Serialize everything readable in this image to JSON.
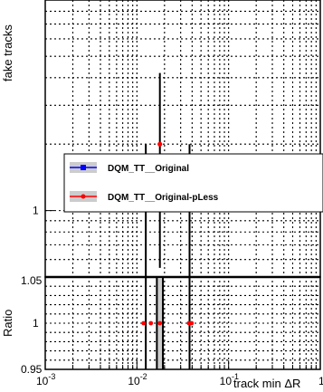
{
  "chart_data": [
    {
      "type": "line",
      "panel": "main",
      "title": "",
      "xlabel": "track min ΔR",
      "ylabel": "fake tracks",
      "x_scale": "log",
      "y_scale": "log",
      "xlim": [
        0.001,
        1
      ],
      "ylim": [
        0.5,
        9
      ],
      "x_tick_labels": [
        "10^-3",
        "10^-2",
        "10^-1",
        "1"
      ],
      "y_tick_labels": [
        "1"
      ],
      "grid": true,
      "legend_position": "center",
      "series": [
        {
          "name": "DQM_TT__Original",
          "color": "#0000ff",
          "x": [],
          "y": []
        },
        {
          "name": "DQM_TT__Original-pLess",
          "color": "#ff0000",
          "points": [
            {
              "x": 0.0178,
              "y": 2,
              "ylow": 0.55,
              "yhigh": 4.2
            }
          ],
          "vertical_bars": [
            {
              "x": 0.0125,
              "ylow": 0.5,
              "yhigh": 2.0
            },
            {
              "x": 0.0375,
              "ylow": 0.5,
              "yhigh": 2.0
            }
          ]
        }
      ]
    },
    {
      "type": "scatter",
      "panel": "ratio",
      "xlabel": "track min ΔR",
      "ylabel": "Ratio",
      "x_scale": "log",
      "xlim": [
        0.001,
        1
      ],
      "ylim": [
        0.95,
        1.05
      ],
      "y_tick_labels": [
        "0.95",
        "1",
        "1.05"
      ],
      "grid": true,
      "series": [
        {
          "name": "DQM_TT__Original-pLess",
          "color": "#ff0000",
          "x": [
            0.0118,
            0.0142,
            0.0178,
            0.037,
            0.0395
          ],
          "y": [
            1,
            1,
            1,
            1,
            1
          ]
        }
      ]
    }
  ]
}
